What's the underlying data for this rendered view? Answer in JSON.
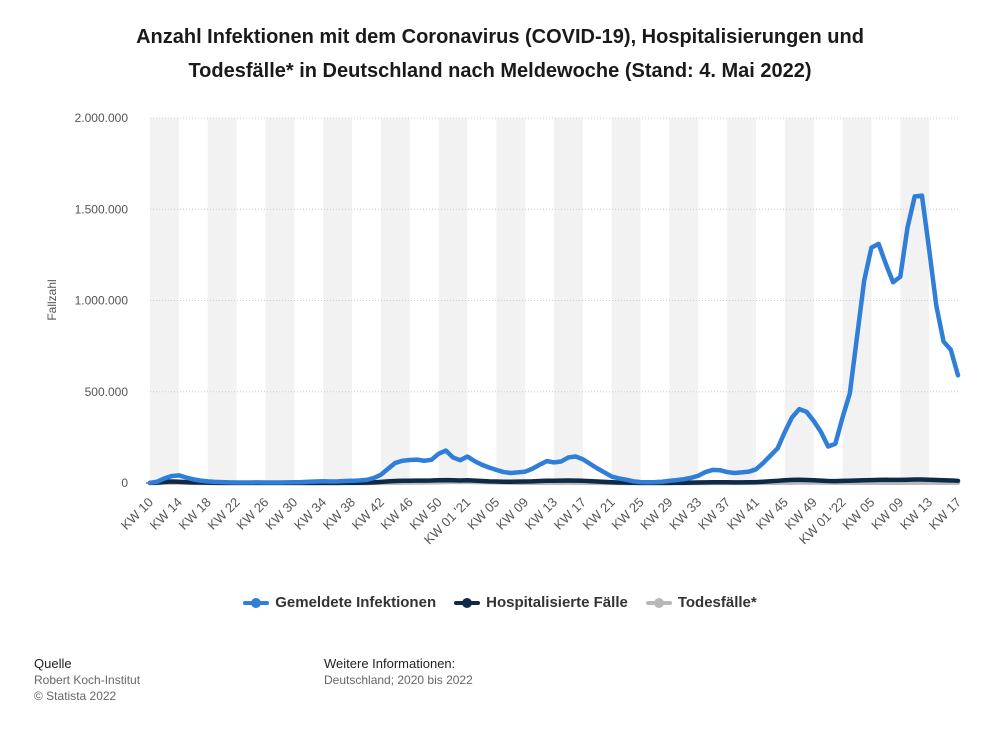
{
  "chart_data": {
    "type": "line",
    "title": "Anzahl Infektionen mit dem Coronavirus (COVID-19), Hospitalisierungen und Todesfälle* in Deutschland nach Meldewoche (Stand: 4. Mai 2022)",
    "y_label": "Fallzahl",
    "categories": [
      "KW 10",
      null,
      null,
      null,
      "KW 14",
      null,
      null,
      null,
      "KW 18",
      null,
      null,
      null,
      "KW 22",
      null,
      null,
      null,
      "KW 26",
      null,
      null,
      null,
      "KW 30",
      null,
      null,
      null,
      "KW 34",
      null,
      null,
      null,
      "KW 38",
      null,
      null,
      null,
      "KW 42",
      null,
      null,
      null,
      "KW 46",
      null,
      null,
      null,
      "KW 50",
      null,
      null,
      null,
      "KW 01 '21",
      null,
      null,
      null,
      "KW 05",
      null,
      null,
      null,
      "KW 09",
      null,
      null,
      null,
      "KW 13",
      null,
      null,
      null,
      "KW 17",
      null,
      null,
      null,
      "KW 21",
      null,
      null,
      null,
      "KW 25",
      null,
      null,
      null,
      "KW 29",
      null,
      null,
      null,
      "KW 33",
      null,
      null,
      null,
      "KW 37",
      null,
      null,
      null,
      "KW 41",
      null,
      null,
      null,
      "KW 45",
      null,
      null,
      null,
      "KW 49",
      null,
      null,
      null,
      "KW 01 '22",
      null,
      null,
      null,
      "KW 05",
      null,
      null,
      null,
      "KW 09",
      null,
      null,
      null,
      "KW 13",
      null,
      null,
      null,
      "KW 17"
    ],
    "series": [
      {
        "name": "Gemeldete Infektionen",
        "color": "#2f7ed8",
        "values": [
          1000,
          7000,
          25000,
          38000,
          42000,
          30000,
          20000,
          13000,
          9000,
          6000,
          4500,
          3500,
          3000,
          2500,
          3000,
          3500,
          3000,
          2800,
          2500,
          3500,
          4000,
          5000,
          7000,
          8500,
          9500,
          8500,
          9000,
          11000,
          12000,
          14000,
          17000,
          27000,
          45000,
          78000,
          110000,
          122000,
          126000,
          128000,
          122000,
          127000,
          160000,
          178000,
          140000,
          125000,
          145000,
          120000,
          100000,
          85000,
          72000,
          60000,
          55000,
          58000,
          62000,
          78000,
          100000,
          120000,
          113000,
          118000,
          140000,
          145000,
          130000,
          105000,
          80000,
          58000,
          35000,
          25000,
          18000,
          9000,
          5000,
          4000,
          4500,
          7000,
          12000,
          16000,
          21000,
          28000,
          40000,
          60000,
          72000,
          70000,
          60000,
          55000,
          58000,
          62000,
          75000,
          110000,
          150000,
          190000,
          280000,
          360000,
          405000,
          390000,
          340000,
          280000,
          200000,
          215000,
          360000,
          490000,
          800000,
          1110000,
          1290000,
          1310000,
          1200000,
          1100000,
          1130000,
          1400000,
          1570000,
          1575000,
          1280000,
          970000,
          775000,
          730000,
          590000
        ]
      },
      {
        "name": "Hospitalisierte Fälle",
        "color": "#0f2a47",
        "values": [
          500,
          2000,
          6000,
          8000,
          7000,
          5000,
          3500,
          2500,
          1800,
          1200,
          900,
          700,
          600,
          500,
          500,
          500,
          500,
          500,
          500,
          600,
          700,
          800,
          900,
          900,
          900,
          900,
          1000,
          1200,
          1400,
          1600,
          2000,
          3500,
          6000,
          9000,
          11000,
          12000,
          12500,
          13000,
          13000,
          13500,
          15000,
          16000,
          15000,
          14000,
          15000,
          13000,
          11000,
          9000,
          8000,
          7000,
          7000,
          7500,
          8000,
          9000,
          11000,
          12500,
          12500,
          13000,
          13500,
          13000,
          12000,
          10000,
          8000,
          6000,
          4000,
          2800,
          2000,
          1300,
          900,
          700,
          700,
          800,
          1000,
          1300,
          1700,
          2200,
          2900,
          3600,
          4000,
          4000,
          3800,
          3600,
          3700,
          4000,
          5000,
          7000,
          9500,
          12000,
          15000,
          17000,
          17500,
          16500,
          15000,
          13000,
          11000,
          10500,
          11500,
          12500,
          14000,
          15000,
          16000,
          17000,
          17500,
          17000,
          17000,
          18000,
          19000,
          19000,
          18000,
          16500,
          15000,
          14000,
          12000
        ]
      },
      {
        "name": "Todesfälle*",
        "color": "#b8b8b8",
        "values": [
          10,
          200,
          1200,
          2000,
          1800,
          1300,
          900,
          600,
          400,
          250,
          150,
          100,
          70,
          50,
          40,
          30,
          30,
          30,
          20,
          30,
          30,
          40,
          40,
          40,
          40,
          40,
          50,
          80,
          100,
          150,
          250,
          400,
          700,
          1100,
          1600,
          2000,
          2300,
          2600,
          2800,
          3300,
          4500,
          5500,
          6000,
          5800,
          6000,
          5500,
          4800,
          4000,
          3200,
          2500,
          1900,
          1500,
          1300,
          1200,
          1200,
          1300,
          1400,
          1600,
          1800,
          1700,
          1500,
          1300,
          1000,
          800,
          600,
          400,
          300,
          200,
          150,
          100,
          80,
          70,
          70,
          80,
          100,
          150,
          200,
          300,
          400,
          450,
          450,
          450,
          450,
          500,
          600,
          800,
          1100,
          1500,
          2000,
          2300,
          2500,
          2600,
          2400,
          2200,
          2000,
          1700,
          1500,
          1400,
          1300,
          1300,
          1400,
          1500,
          1600,
          1700,
          1700,
          1800,
          1900,
          2000,
          2000,
          1800,
          1600,
          1400,
          1200
        ]
      }
    ],
    "ylim": [
      0,
      2000000
    ],
    "yticks": [
      0,
      {
        "value": 500000,
        "label": "500.000"
      },
      {
        "value": 1000000,
        "label": "1.000.000"
      },
      {
        "value": 1500000,
        "label": "1.500.000"
      },
      {
        "value": 2000000,
        "label": "2.000.000"
      }
    ],
    "grid": true,
    "legend": "bottom"
  },
  "source": {
    "heading": "Quelle",
    "lines": [
      "Robert Koch-Institut",
      "© Statista 2022"
    ]
  },
  "info": {
    "heading": "Weitere Informationen:",
    "text": "Deutschland; 2020 bis 2022"
  }
}
